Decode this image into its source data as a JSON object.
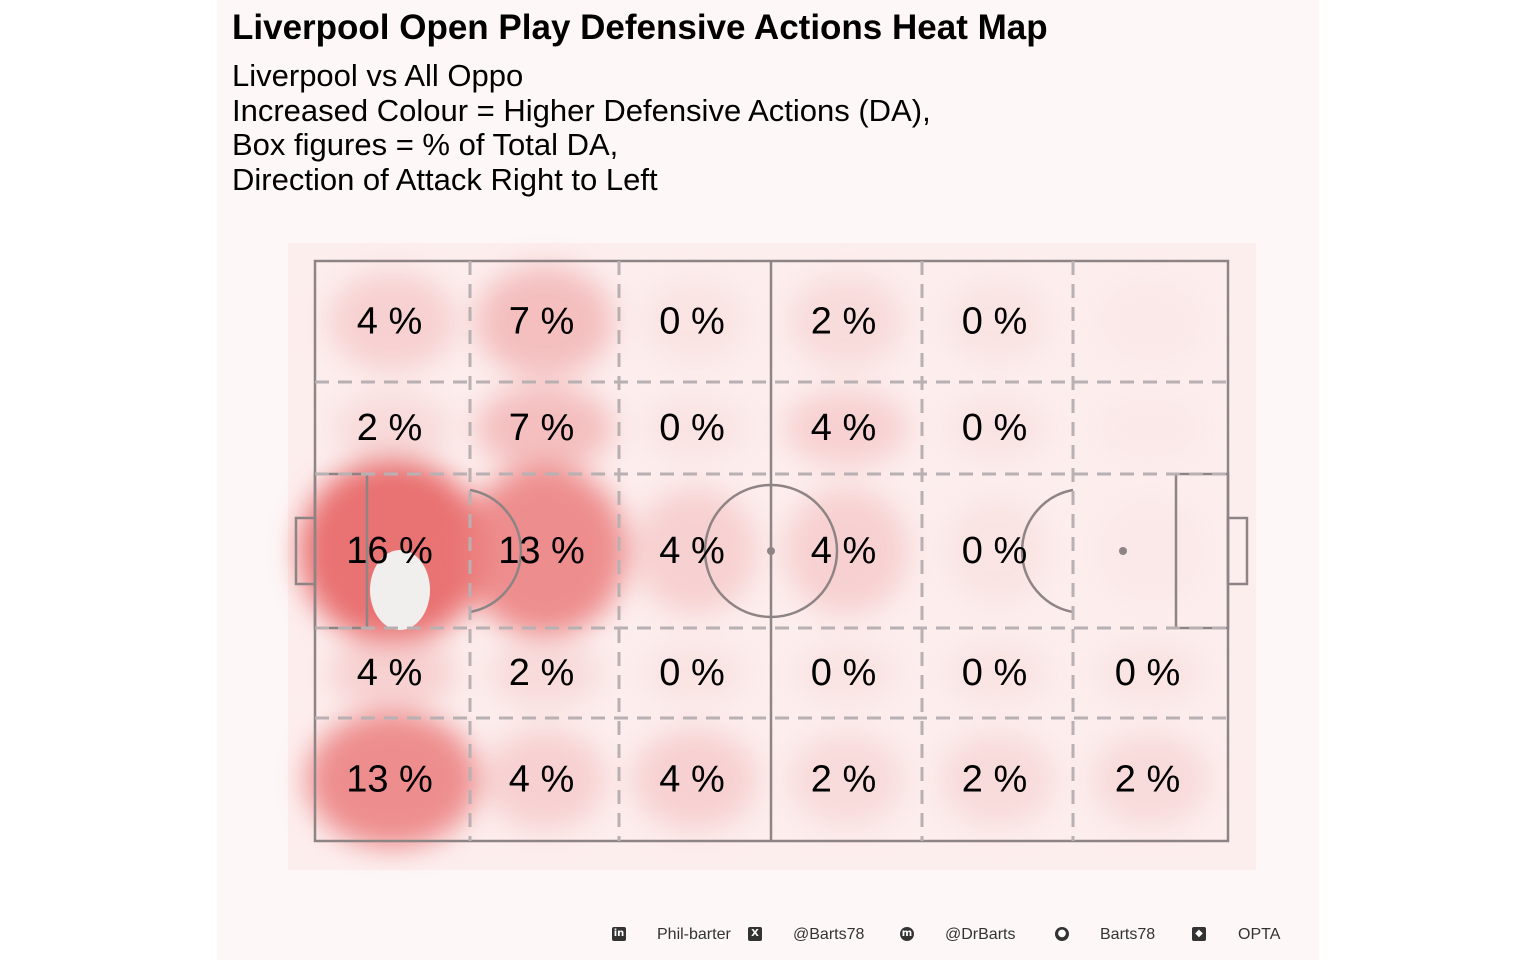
{
  "title": "Liverpool Open Play Defensive Actions Heat Map",
  "subtitle": [
    "Liverpool vs All Oppo",
    "Increased Colour = Higher Defensive Actions (DA),",
    "Box figures = % of Total DA,",
    "Direction of Attack Right to Left"
  ],
  "colors": {
    "panel_background": "#fdf7f7",
    "heat_low": "#f6d6d6",
    "heat_high": "#e86a6a",
    "pitch_lines": "#8e8486",
    "zone_lines": "#b8b0b2"
  },
  "chart_data": {
    "type": "heatmap",
    "title": "Liverpool Open Play Defensive Actions Heat Map",
    "value_unit": "% of Total DA",
    "direction_of_attack": "Right to Left",
    "columns": 6,
    "rows": 5,
    "cells": [
      [
        "4 %",
        "7 %",
        "0 %",
        "2 %",
        "0 %",
        ""
      ],
      [
        "2 %",
        "7 %",
        "0 %",
        "4 %",
        "0 %",
        ""
      ],
      [
        "16 %",
        "13 %",
        "4 %",
        "4 %",
        "0 %",
        ""
      ],
      [
        "4 %",
        "2 %",
        "0 %",
        "0 %",
        "0 %",
        "0 %"
      ],
      [
        "13 %",
        "4 %",
        "4 %",
        "2 %",
        "2 %",
        "2 %"
      ]
    ],
    "values": [
      [
        4,
        7,
        0,
        2,
        0,
        null
      ],
      [
        2,
        7,
        0,
        4,
        0,
        null
      ],
      [
        16,
        13,
        4,
        4,
        0,
        null
      ],
      [
        4,
        2,
        0,
        0,
        0,
        0
      ],
      [
        13,
        4,
        4,
        2,
        2,
        2
      ]
    ]
  },
  "footer": {
    "items": [
      {
        "icon": "linkedin-icon",
        "text": "Phil-barter"
      },
      {
        "icon": "x-twitter-icon",
        "text": "@Barts78"
      },
      {
        "icon": "mastodon-icon",
        "text": "@DrBarts"
      },
      {
        "icon": "github-icon",
        "text": "Barts78"
      },
      {
        "icon": "dropbox-icon",
        "text": "OPTA"
      }
    ]
  }
}
